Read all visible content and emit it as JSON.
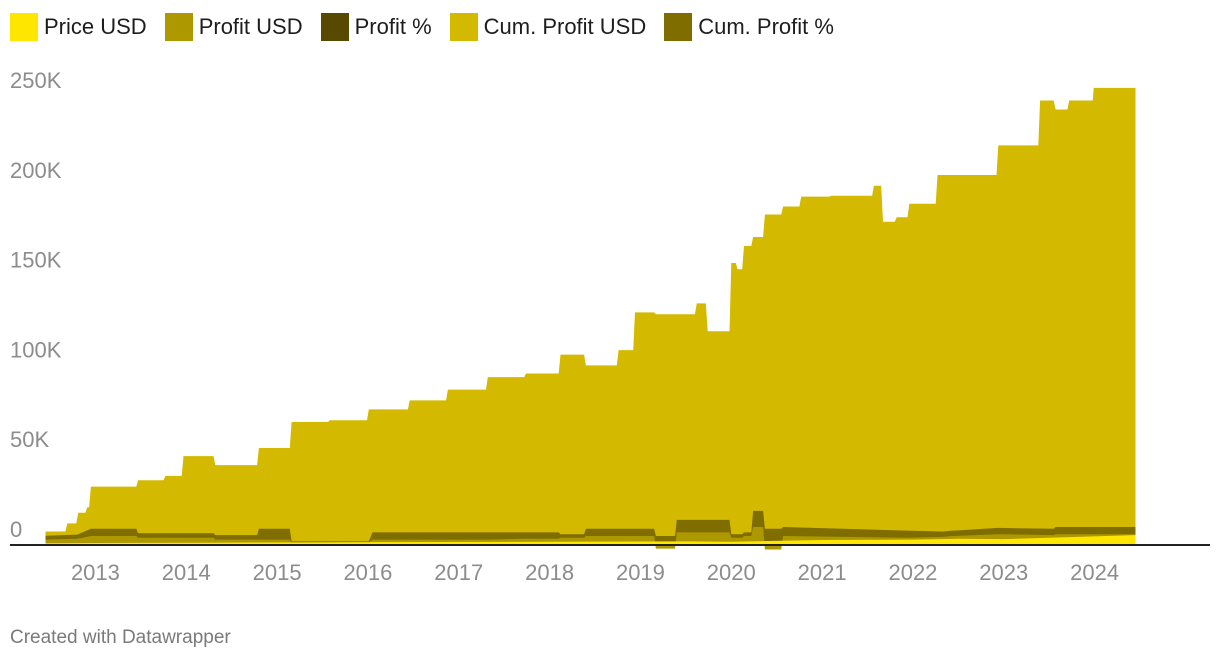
{
  "footer": {
    "text": "Created with Datawrapper"
  },
  "chart_data": {
    "type": "area",
    "title": "",
    "xlabel": "",
    "ylabel": "",
    "xlim": [
      2012.5,
      2025.05
    ],
    "ylim": [
      -3000,
      270000
    ],
    "grid": false,
    "legend_position": "top-left",
    "x_ticks": [
      "2013",
      "2014",
      "2015",
      "2016",
      "2017",
      "2018",
      "2019",
      "2020",
      "2021",
      "2022",
      "2023",
      "2024"
    ],
    "y_ticks": [
      {
        "value": 0,
        "label": "0"
      },
      {
        "value": 50000,
        "label": "50K"
      },
      {
        "value": 100000,
        "label": "100K"
      },
      {
        "value": 150000,
        "label": "150K"
      },
      {
        "value": 200000,
        "label": "200K"
      },
      {
        "value": 250000,
        "label": "250K"
      }
    ],
    "series": [
      {
        "name": "Cum. Profit USD",
        "color": "#d3ba00",
        "x": [
          2012.45,
          2012.67,
          2012.69,
          2012.79,
          2012.81,
          2012.89,
          2012.91,
          2012.93,
          2012.95,
          2013.45,
          2013.47,
          2013.75,
          2013.77,
          2013.95,
          2013.97,
          2014.3,
          2014.32,
          2014.78,
          2014.8,
          2015.14,
          2015.16,
          2015.56,
          2015.58,
          2015.99,
          2016.01,
          2016.44,
          2016.46,
          2016.86,
          2016.88,
          2017.3,
          2017.32,
          2017.72,
          2017.74,
          2018.1,
          2018.12,
          2018.38,
          2018.4,
          2018.74,
          2018.76,
          2018.92,
          2018.94,
          2019.15,
          2019.17,
          2019.6,
          2019.62,
          2019.72,
          2019.74,
          2019.98,
          2020.0,
          2020.05,
          2020.07,
          2020.12,
          2020.14,
          2020.22,
          2020.24,
          2020.35,
          2020.37,
          2020.55,
          2020.57,
          2020.75,
          2020.77,
          2021.08,
          2021.1,
          2021.55,
          2021.57,
          2021.65,
          2021.67,
          2021.8,
          2021.82,
          2021.94,
          2021.96,
          2022.25,
          2022.27,
          2022.92,
          2022.94,
          2023.38,
          2023.4,
          2023.55,
          2023.57,
          2023.7,
          2023.72,
          2023.98,
          2023.99,
          2024.45
        ],
        "values": [
          7500,
          7500,
          12000,
          12000,
          18000,
          18000,
          21000,
          21000,
          32500,
          32500,
          36000,
          36000,
          38500,
          38500,
          49500,
          49500,
          44500,
          44500,
          54000,
          54000,
          68500,
          68500,
          69500,
          69500,
          75500,
          75500,
          80500,
          80500,
          86500,
          86500,
          93500,
          93500,
          95500,
          95500,
          106000,
          106000,
          100000,
          100000,
          108500,
          108500,
          129500,
          129500,
          128500,
          128500,
          134500,
          134500,
          119000,
          119000,
          157000,
          157000,
          153500,
          153500,
          166500,
          166500,
          171500,
          171500,
          184000,
          184000,
          188500,
          188500,
          194000,
          194000,
          194500,
          194500,
          200000,
          200000,
          180000,
          180000,
          182500,
          182500,
          190000,
          190000,
          206000,
          206000,
          222500,
          222500,
          247500,
          247500,
          242500,
          242500,
          247500,
          247500,
          254500,
          254500
        ]
      },
      {
        "name": "Cum. Profit %",
        "color": "#7f6d00",
        "x": [
          2012.45,
          2012.8,
          2012.95,
          2013.45,
          2013.47,
          2014.3,
          2014.32,
          2014.78,
          2014.8,
          2015.14,
          2015.16,
          2016.01,
          2016.05,
          2017.32,
          2017.72,
          2018.1,
          2018.12,
          2018.38,
          2018.4,
          2019.15,
          2019.17,
          2019.38,
          2019.4,
          2019.98,
          2020.0,
          2020.12,
          2020.14,
          2020.22,
          2020.24,
          2020.35,
          2020.37,
          2020.55,
          2020.57,
          2021.94,
          2022.32,
          2022.33,
          2022.43,
          2022.45,
          2022.94,
          2023.55,
          2023.57,
          2024.45
        ],
        "values": [
          5200,
          5800,
          9000,
          9000,
          6500,
          6500,
          5500,
          5500,
          9000,
          9000,
          2000,
          2000,
          7000,
          7000,
          7000,
          7000,
          6000,
          6000,
          9000,
          9000,
          5000,
          5000,
          14000,
          14000,
          6000,
          6000,
          7000,
          7000,
          19000,
          19000,
          9000,
          9000,
          10000,
          8000,
          7500,
          7500,
          8000,
          8000,
          9500,
          9000,
          10000,
          10000
        ]
      },
      {
        "name": "Profit USD",
        "color": "#ad9800",
        "x": [
          2012.45,
          2012.8,
          2012.95,
          2013.45,
          2013.47,
          2014.3,
          2014.32,
          2014.78,
          2014.8,
          2015.14,
          2015.16,
          2016.01,
          2016.05,
          2017.32,
          2017.72,
          2018.1,
          2018.12,
          2018.38,
          2018.4,
          2019.15,
          2019.17,
          2019.38,
          2019.4,
          2019.98,
          2020.0,
          2020.12,
          2020.14,
          2020.22,
          2020.24,
          2020.35,
          2020.37,
          2020.55,
          2020.57,
          2021.94,
          2022.32,
          2022.33,
          2022.43,
          2022.45,
          2022.94,
          2023.55,
          2023.57,
          2024.45
        ],
        "values": [
          3000,
          3500,
          5000,
          5000,
          4000,
          4000,
          3000,
          3000,
          3000,
          3000,
          1000,
          1000,
          3000,
          3000,
          3500,
          3500,
          4000,
          4000,
          5000,
          5000,
          -2000,
          -2000,
          7000,
          7000,
          4000,
          4000,
          5000,
          5000,
          10000,
          10000,
          -2500,
          -2500,
          5000,
          4000,
          4500,
          4500,
          5000,
          5000,
          6000,
          5500,
          6000,
          6000
        ]
      },
      {
        "name": "Price USD",
        "color": "#ffe600",
        "x": [
          2012.45,
          2014.0,
          2016.0,
          2018.0,
          2019.5,
          2020.0,
          2020.3,
          2021.0,
          2022.0,
          2022.5,
          2023.0,
          2023.5,
          2024.45
        ],
        "values": [
          1000,
          1300,
          1600,
          1800,
          2000,
          1800,
          2100,
          2800,
          3000,
          3500,
          3300,
          4000,
          5500
        ]
      },
      {
        "name": "Profit %",
        "color": "#574a00",
        "x": [
          2012.45,
          2024.45
        ],
        "values": [
          400,
          400
        ]
      }
    ]
  }
}
